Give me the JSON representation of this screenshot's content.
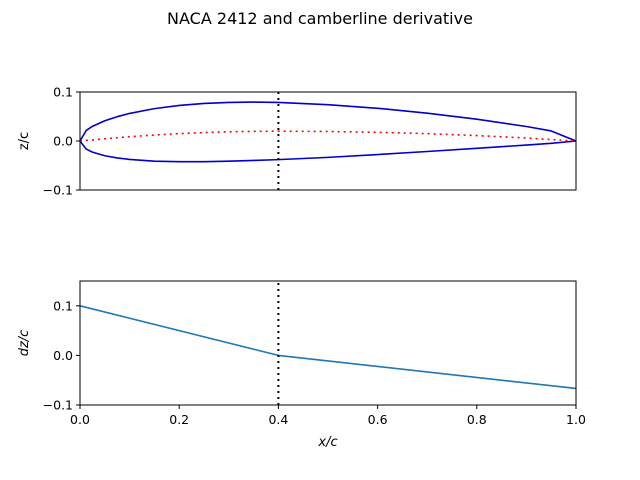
{
  "figure": {
    "suptitle": "NACA 2412 and camberline derivative"
  },
  "chart_data": [
    {
      "type": "line",
      "title": "",
      "xlabel": "",
      "ylabel": "z/c",
      "xlim": [
        0,
        1
      ],
      "ylim": [
        -0.1,
        0.1
      ],
      "yticks": [
        -0.1,
        0.0,
        0.1
      ],
      "ytick_labels": [
        "−0.1",
        "0.0",
        "0.1"
      ],
      "x_ticks_visible": false,
      "grid": false,
      "airfoil": {
        "max_camber": 0.02,
        "camber_position": 0.4,
        "thickness": 0.12
      },
      "series": [
        {
          "role": "upper-surface",
          "color": "#0000cd",
          "style": "solid",
          "x": [
            0.0,
            0.0125,
            0.025,
            0.05,
            0.075,
            0.1,
            0.15,
            0.2,
            0.25,
            0.3,
            0.35,
            0.4,
            0.5,
            0.6,
            0.7,
            0.8,
            0.9,
            0.95,
            1.0
          ],
          "values": [
            0.0,
            0.0215,
            0.0299,
            0.0413,
            0.0496,
            0.0563,
            0.0661,
            0.0726,
            0.0767,
            0.0788,
            0.0795,
            0.0788,
            0.0742,
            0.0668,
            0.0568,
            0.0446,
            0.0296,
            0.0205,
            0.0
          ]
        },
        {
          "role": "lower-surface",
          "color": "#0000cd",
          "style": "solid",
          "x": [
            0.0,
            0.0125,
            0.025,
            0.05,
            0.075,
            0.1,
            0.15,
            0.2,
            0.25,
            0.3,
            0.35,
            0.4,
            0.5,
            0.6,
            0.7,
            0.8,
            0.9,
            0.95,
            1.0
          ],
          "values": [
            0.0,
            -0.0165,
            -0.0227,
            -0.0301,
            -0.0346,
            -0.0376,
            -0.0411,
            -0.0423,
            -0.0422,
            -0.0412,
            -0.0396,
            -0.038,
            -0.0334,
            -0.0276,
            -0.0214,
            -0.015,
            -0.0082,
            -0.0048,
            0.0
          ]
        },
        {
          "role": "camber-line",
          "color": "#ff0000",
          "style": "dotted",
          "x": [
            0.0,
            0.05,
            0.1,
            0.15,
            0.2,
            0.25,
            0.3,
            0.35,
            0.4,
            0.5,
            0.6,
            0.7,
            0.8,
            0.9,
            1.0
          ],
          "values": [
            0.0,
            0.0047,
            0.0088,
            0.0122,
            0.015,
            0.0172,
            0.0188,
            0.0197,
            0.02,
            0.0194,
            0.0178,
            0.015,
            0.0111,
            0.0061,
            0.0
          ]
        },
        {
          "role": "max-camber-marker",
          "color": "#000000",
          "style": "dotted",
          "x": [
            0.4,
            0.4
          ],
          "values": [
            -0.1,
            0.1
          ]
        }
      ]
    },
    {
      "type": "line",
      "title": "",
      "xlabel": "x/c",
      "ylabel": "dz/c",
      "xlim": [
        0,
        1
      ],
      "ylim": [
        -0.1,
        0.15
      ],
      "xticks": [
        0.0,
        0.2,
        0.4,
        0.6,
        0.8,
        1.0
      ],
      "xtick_labels": [
        "0.0",
        "0.2",
        "0.4",
        "0.6",
        "0.8",
        "1.0"
      ],
      "yticks": [
        -0.1,
        0.0,
        0.1
      ],
      "ytick_labels": [
        "−0.1",
        "0.0",
        "0.1"
      ],
      "grid": false,
      "series": [
        {
          "role": "camber-derivative",
          "color": "#1f77b4",
          "style": "solid",
          "x": [
            0.0,
            0.4,
            1.0
          ],
          "values": [
            0.1,
            0.0,
            -0.0667
          ]
        },
        {
          "role": "max-camber-marker",
          "color": "#000000",
          "style": "dotted",
          "x": [
            0.4,
            0.4
          ],
          "values": [
            -0.1,
            0.15
          ]
        }
      ]
    }
  ]
}
